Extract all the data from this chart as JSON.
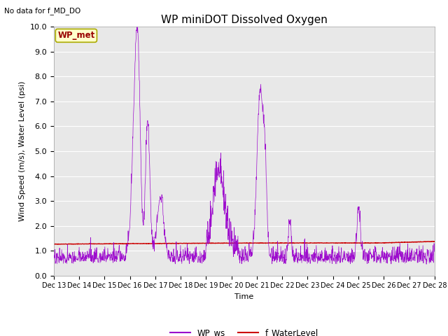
{
  "title": "WP miniDOT Dissolved Oxygen",
  "top_left_text": "No data for f_MD_DO",
  "xlabel": "Time",
  "ylabel": "Wind Speed (m/s), Water Level (psi)",
  "ylim": [
    0.0,
    10.0
  ],
  "yticks": [
    0.0,
    1.0,
    2.0,
    3.0,
    4.0,
    5.0,
    6.0,
    7.0,
    8.0,
    9.0,
    10.0
  ],
  "x_tick_labels": [
    "Dec 13",
    "Dec 14",
    "Dec 15",
    "Dec 16",
    "Dec 17",
    "Dec 18",
    "Dec 19",
    "Dec 20",
    "Dec 21",
    "Dec 22",
    "Dec 23",
    "Dec 24",
    "Dec 25",
    "Dec 26",
    "Dec 27",
    "Dec 28"
  ],
  "wp_ws_color": "#9900cc",
  "water_level_color": "#cc0000",
  "annotation_box_text": "WP_met",
  "annotation_box_facecolor": "#ffffcc",
  "annotation_box_edgecolor": "#aaaa00",
  "annotation_box_textcolor": "#990000",
  "background_color": "#e8e8e8",
  "legend_ws_label": "WP_ws",
  "legend_wl_label": "f_WaterLevel",
  "grid_color": "white",
  "title_fontsize": 11,
  "axis_label_fontsize": 8,
  "tick_fontsize": 8
}
